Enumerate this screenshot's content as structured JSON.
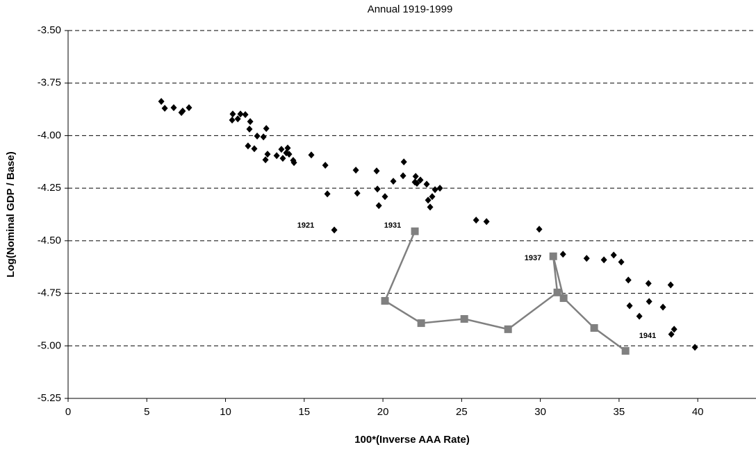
{
  "chart_data": {
    "type": "scatter",
    "title": "Annual 1919-1999",
    "x_label": "100*(Inverse AAA Rate)",
    "y_label": "Log(Nominal GDP / Base)",
    "xlim": [
      0,
      43.7
    ],
    "xticks": [
      0,
      5,
      10,
      15,
      20,
      25,
      30,
      35,
      40
    ],
    "ylim": [
      -5.25,
      -3.5
    ],
    "yticks": [
      {
        "value": -5.25,
        "label": "-5.25"
      },
      {
        "value": -5.0,
        "label": "-5.00"
      },
      {
        "value": -4.75,
        "label": "-4.75"
      },
      {
        "value": -4.5,
        "label": "-4.50"
      },
      {
        "value": -4.25,
        "label": "-4.25"
      },
      {
        "value": -4.0,
        "label": "-4.00"
      },
      {
        "value": -3.75,
        "label": "-3.75"
      },
      {
        "value": -3.5,
        "label": "-3.50"
      }
    ],
    "grid": true,
    "series": [
      {
        "color": "#000000",
        "marker": "diamond",
        "x": [
          5.92,
          6.14,
          6.71,
          7.2,
          7.28,
          7.68,
          10.46,
          10.42,
          10.78,
          10.95,
          11.26,
          11.57,
          11.52,
          11.43,
          11.83,
          12.01,
          12.41,
          12.59,
          12.67,
          12.54,
          13.25,
          13.55,
          13.64,
          13.86,
          13.95,
          14.04,
          14.3,
          14.35,
          15.45,
          16.34,
          16.47,
          16.91,
          18.28,
          18.37,
          19.6,
          19.65,
          19.74,
          20.13,
          20.66,
          21.28,
          21.33,
          22.08,
          22.03,
          22.16,
          22.38,
          22.78,
          22.87,
          23.0,
          23.13,
          23.31,
          23.62,
          25.92,
          26.58,
          29.93,
          31.44,
          32.94,
          34.04,
          34.66,
          35.14,
          35.59,
          35.67,
          36.29,
          36.87,
          36.91,
          37.79,
          38.28,
          38.32,
          38.5,
          39.82
        ],
        "values": [
          -3.837,
          -3.87,
          -3.867,
          -3.89,
          -3.883,
          -3.867,
          -3.897,
          -3.926,
          -3.92,
          -3.897,
          -3.9,
          -3.933,
          -3.969,
          -4.049,
          -4.062,
          -4.002,
          -4.006,
          -3.966,
          -4.088,
          -4.115,
          -4.095,
          -4.065,
          -4.108,
          -4.082,
          -4.059,
          -4.088,
          -4.118,
          -4.128,
          -4.092,
          -4.141,
          -4.277,
          -4.449,
          -4.164,
          -4.274,
          -4.168,
          -4.254,
          -4.333,
          -4.29,
          -4.217,
          -4.191,
          -4.125,
          -4.194,
          -4.221,
          -4.227,
          -4.211,
          -4.231,
          -4.307,
          -4.34,
          -4.29,
          -4.257,
          -4.25,
          -4.402,
          -4.409,
          -4.445,
          -4.564,
          -4.584,
          -4.591,
          -4.568,
          -4.601,
          -4.687,
          -4.809,
          -4.859,
          -4.703,
          -4.789,
          -4.816,
          -4.71,
          -4.945,
          -4.921,
          -5.007
        ]
      },
      {
        "color": "#808080",
        "marker": "square",
        "line": true,
        "x": [
          22.03,
          20.13,
          22.43,
          25.17,
          27.95,
          31.08,
          30.82,
          31.48,
          33.42,
          35.41
        ],
        "values": [
          -4.455,
          -4.786,
          -4.892,
          -4.872,
          -4.921,
          -4.746,
          -4.574,
          -4.773,
          -4.915,
          -5.024
        ]
      }
    ],
    "annotations": [
      "1921",
      "1931",
      "1937",
      "1941"
    ]
  }
}
